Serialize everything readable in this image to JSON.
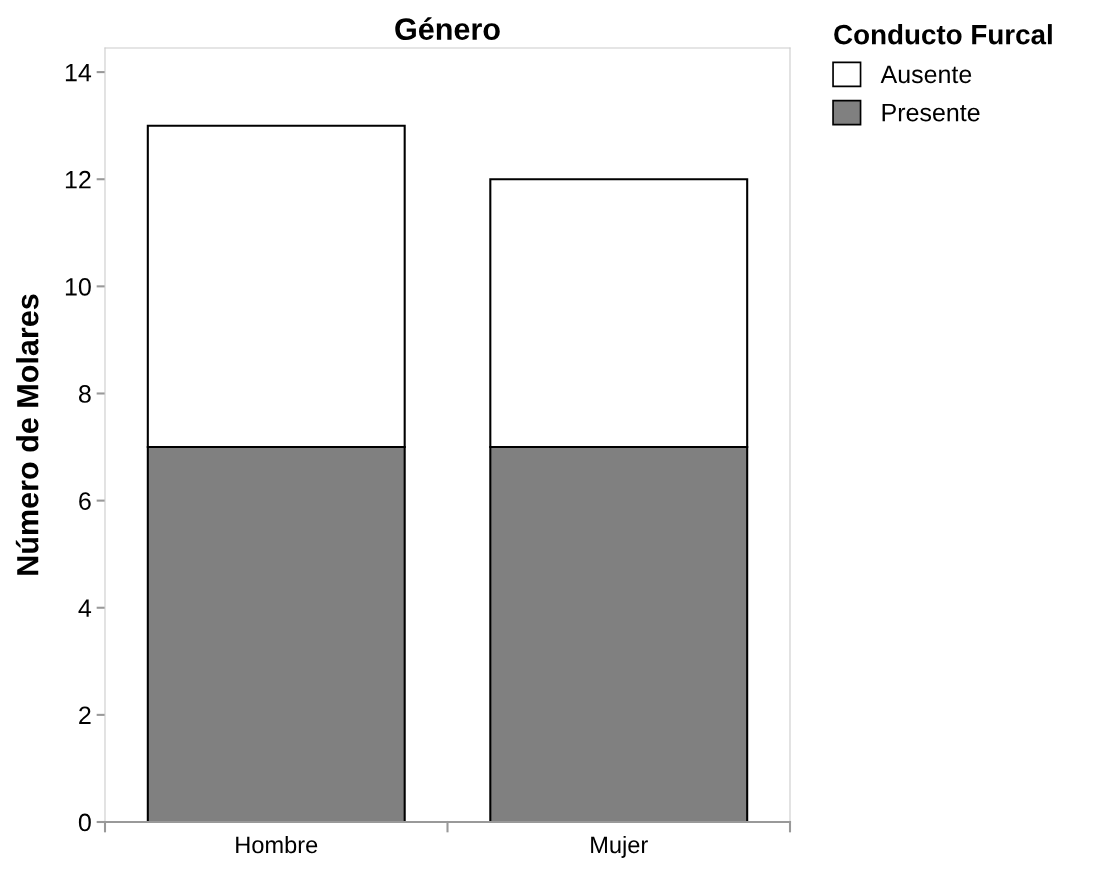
{
  "chart_data": {
    "type": "bar",
    "title": "Género",
    "ylabel": "Número de Molares",
    "legend_title": "Conducto Furcal",
    "categories": [
      "Hombre",
      "Mujer"
    ],
    "stacked": true,
    "series": [
      {
        "name": "Presente",
        "color": "#808080",
        "values": [
          7,
          7
        ]
      },
      {
        "name": "Ausente",
        "color": "#ffffff",
        "values": [
          6,
          5
        ]
      }
    ],
    "ylim": [
      0,
      14.45
    ],
    "yticks": [
      0,
      2,
      4,
      6,
      8,
      10,
      12,
      14
    ],
    "grid": false,
    "legend": "top right"
  }
}
